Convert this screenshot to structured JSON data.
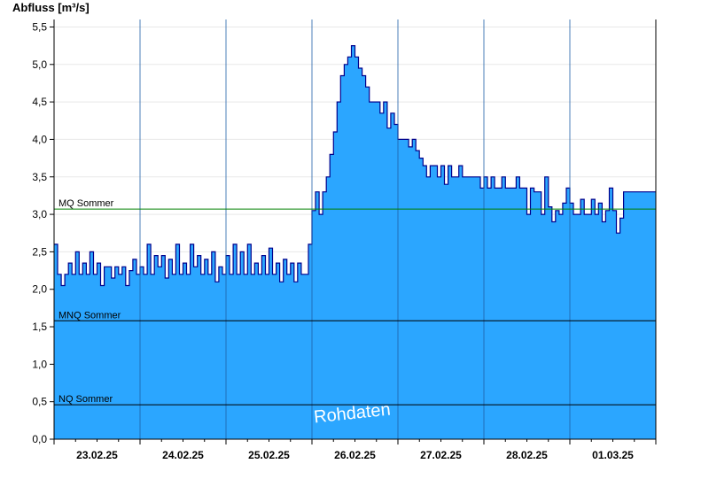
{
  "chart_data": {
    "type": "area",
    "ylabel": "Abfluss [m³/s]",
    "ylim": [
      0,
      5.6
    ],
    "yticks": [
      "0,0",
      "0,5",
      "1,0",
      "1,5",
      "2,0",
      "2,5",
      "3,0",
      "3,5",
      "4,0",
      "4,5",
      "5,0",
      "5,5"
    ],
    "yticks_values": [
      0,
      0.5,
      1.0,
      1.5,
      2.0,
      2.5,
      3.0,
      3.5,
      4.0,
      4.5,
      5.0,
      5.5
    ],
    "x_range_days": [
      "2025-02-23T00:00",
      "2025-03-02T00:00"
    ],
    "xticks": [
      "23.02.25",
      "24.02.25",
      "25.02.25",
      "26.02.25",
      "27.02.25",
      "28.02.25",
      "01.03.25"
    ],
    "grid": true,
    "fill_color": "#2ba6ff",
    "line_color": "#00008b",
    "reference_lines": [
      {
        "label": "MQ Sommer",
        "value": 3.07,
        "color": "#008000"
      },
      {
        "label": "MNQ Sommer",
        "value": 1.58,
        "color": "#000000"
      },
      {
        "label": "NQ Sommer",
        "value": 0.46,
        "color": "#000000"
      }
    ],
    "watermark": "Rohdaten",
    "series": [
      {
        "values": [
          [
            "2025-02-23T00:00",
            2.6
          ],
          [
            "2025-02-23T01:00",
            2.2
          ],
          [
            "2025-02-23T02:00",
            2.05
          ],
          [
            "2025-02-23T03:00",
            2.2
          ],
          [
            "2025-02-23T04:00",
            2.35
          ],
          [
            "2025-02-23T05:00",
            2.2
          ],
          [
            "2025-02-23T06:00",
            2.5
          ],
          [
            "2025-02-23T07:00",
            2.2
          ],
          [
            "2025-02-23T08:00",
            2.35
          ],
          [
            "2025-02-23T09:00",
            2.2
          ],
          [
            "2025-02-23T10:00",
            2.5
          ],
          [
            "2025-02-23T11:00",
            2.2
          ],
          [
            "2025-02-23T12:00",
            2.35
          ],
          [
            "2025-02-23T13:00",
            2.05
          ],
          [
            "2025-02-23T14:00",
            2.3
          ],
          [
            "2025-02-23T15:00",
            2.3
          ],
          [
            "2025-02-23T16:00",
            2.15
          ],
          [
            "2025-02-23T17:00",
            2.3
          ],
          [
            "2025-02-23T18:00",
            2.2
          ],
          [
            "2025-02-23T19:00",
            2.3
          ],
          [
            "2025-02-23T20:00",
            2.05
          ],
          [
            "2025-02-23T21:00",
            2.25
          ],
          [
            "2025-02-23T22:00",
            2.4
          ],
          [
            "2025-02-23T23:00",
            2.2
          ],
          [
            "2025-02-24T00:00",
            2.3
          ],
          [
            "2025-02-24T01:00",
            2.2
          ],
          [
            "2025-02-24T02:00",
            2.6
          ],
          [
            "2025-02-24T03:00",
            2.2
          ],
          [
            "2025-02-24T04:00",
            2.45
          ],
          [
            "2025-02-24T05:00",
            2.3
          ],
          [
            "2025-02-24T06:00",
            2.45
          ],
          [
            "2025-02-24T07:00",
            2.15
          ],
          [
            "2025-02-24T08:00",
            2.4
          ],
          [
            "2025-02-24T09:00",
            2.2
          ],
          [
            "2025-02-24T10:00",
            2.6
          ],
          [
            "2025-02-24T11:00",
            2.2
          ],
          [
            "2025-02-24T12:00",
            2.35
          ],
          [
            "2025-02-24T13:00",
            2.2
          ],
          [
            "2025-02-24T14:00",
            2.6
          ],
          [
            "2025-02-24T15:00",
            2.3
          ],
          [
            "2025-02-24T16:00",
            2.45
          ],
          [
            "2025-02-24T17:00",
            2.2
          ],
          [
            "2025-02-24T18:00",
            2.4
          ],
          [
            "2025-02-24T19:00",
            2.2
          ],
          [
            "2025-02-24T20:00",
            2.5
          ],
          [
            "2025-02-24T21:00",
            2.1
          ],
          [
            "2025-02-24T22:00",
            2.3
          ],
          [
            "2025-02-24T23:00",
            2.2
          ],
          [
            "2025-02-25T00:00",
            2.45
          ],
          [
            "2025-02-25T01:00",
            2.2
          ],
          [
            "2025-02-25T02:00",
            2.6
          ],
          [
            "2025-02-25T03:00",
            2.2
          ],
          [
            "2025-02-25T04:00",
            2.5
          ],
          [
            "2025-02-25T05:00",
            2.2
          ],
          [
            "2025-02-25T06:00",
            2.6
          ],
          [
            "2025-02-25T07:00",
            2.2
          ],
          [
            "2025-02-25T08:00",
            2.35
          ],
          [
            "2025-02-25T09:00",
            2.2
          ],
          [
            "2025-02-25T10:00",
            2.45
          ],
          [
            "2025-02-25T11:00",
            2.2
          ],
          [
            "2025-02-25T12:00",
            2.55
          ],
          [
            "2025-02-25T13:00",
            2.2
          ],
          [
            "2025-02-25T14:00",
            2.35
          ],
          [
            "2025-02-25T15:00",
            2.1
          ],
          [
            "2025-02-25T16:00",
            2.4
          ],
          [
            "2025-02-25T17:00",
            2.2
          ],
          [
            "2025-02-25T18:00",
            2.35
          ],
          [
            "2025-02-25T19:00",
            2.1
          ],
          [
            "2025-02-25T20:00",
            2.35
          ],
          [
            "2025-02-25T21:00",
            2.2
          ],
          [
            "2025-02-25T22:00",
            2.2
          ],
          [
            "2025-02-25T23:00",
            2.6
          ],
          [
            "2025-02-26T00:00",
            3.05
          ],
          [
            "2025-02-26T01:00",
            3.3
          ],
          [
            "2025-02-26T02:00",
            3.0
          ],
          [
            "2025-02-26T03:00",
            3.3
          ],
          [
            "2025-02-26T04:00",
            3.5
          ],
          [
            "2025-02-26T05:00",
            3.8
          ],
          [
            "2025-02-26T06:00",
            4.1
          ],
          [
            "2025-02-26T07:00",
            4.5
          ],
          [
            "2025-02-26T08:00",
            4.85
          ],
          [
            "2025-02-26T09:00",
            5.0
          ],
          [
            "2025-02-26T10:00",
            5.1
          ],
          [
            "2025-02-26T11:00",
            5.25
          ],
          [
            "2025-02-26T12:00",
            5.1
          ],
          [
            "2025-02-26T13:00",
            4.95
          ],
          [
            "2025-02-26T14:00",
            4.85
          ],
          [
            "2025-02-26T15:00",
            4.7
          ],
          [
            "2025-02-26T16:00",
            4.5
          ],
          [
            "2025-02-26T17:00",
            4.5
          ],
          [
            "2025-02-26T18:00",
            4.5
          ],
          [
            "2025-02-26T19:00",
            4.35
          ],
          [
            "2025-02-26T20:00",
            4.5
          ],
          [
            "2025-02-26T21:00",
            4.15
          ],
          [
            "2025-02-26T22:00",
            4.35
          ],
          [
            "2025-02-26T23:00",
            4.2
          ],
          [
            "2025-02-27T00:00",
            4.0
          ],
          [
            "2025-02-27T01:00",
            4.0
          ],
          [
            "2025-02-27T02:00",
            4.0
          ],
          [
            "2025-02-27T03:00",
            3.9
          ],
          [
            "2025-02-27T04:00",
            4.0
          ],
          [
            "2025-02-27T05:00",
            3.85
          ],
          [
            "2025-02-27T06:00",
            3.75
          ],
          [
            "2025-02-27T07:00",
            3.65
          ],
          [
            "2025-02-27T08:00",
            3.5
          ],
          [
            "2025-02-27T09:00",
            3.65
          ],
          [
            "2025-02-27T10:00",
            3.65
          ],
          [
            "2025-02-27T11:00",
            3.5
          ],
          [
            "2025-02-27T12:00",
            3.65
          ],
          [
            "2025-02-27T13:00",
            3.4
          ],
          [
            "2025-02-27T14:00",
            3.65
          ],
          [
            "2025-02-27T15:00",
            3.5
          ],
          [
            "2025-02-27T16:00",
            3.5
          ],
          [
            "2025-02-27T17:00",
            3.65
          ],
          [
            "2025-02-27T18:00",
            3.5
          ],
          [
            "2025-02-27T19:00",
            3.5
          ],
          [
            "2025-02-27T20:00",
            3.5
          ],
          [
            "2025-02-27T21:00",
            3.5
          ],
          [
            "2025-02-27T22:00",
            3.5
          ],
          [
            "2025-02-27T23:00",
            3.35
          ],
          [
            "2025-02-28T00:00",
            3.5
          ],
          [
            "2025-02-28T01:00",
            3.35
          ],
          [
            "2025-02-28T02:00",
            3.5
          ],
          [
            "2025-02-28T03:00",
            3.35
          ],
          [
            "2025-02-28T04:00",
            3.35
          ],
          [
            "2025-02-28T05:00",
            3.5
          ],
          [
            "2025-02-28T06:00",
            3.35
          ],
          [
            "2025-02-28T07:00",
            3.35
          ],
          [
            "2025-02-28T08:00",
            3.35
          ],
          [
            "2025-02-28T09:00",
            3.5
          ],
          [
            "2025-02-28T10:00",
            3.35
          ],
          [
            "2025-02-28T11:00",
            3.35
          ],
          [
            "2025-02-28T12:00",
            3.0
          ],
          [
            "2025-02-28T13:00",
            3.35
          ],
          [
            "2025-02-28T14:00",
            3.3
          ],
          [
            "2025-02-28T15:00",
            3.3
          ],
          [
            "2025-02-28T16:00",
            3.0
          ],
          [
            "2025-02-28T17:00",
            3.5
          ],
          [
            "2025-02-28T18:00",
            3.1
          ],
          [
            "2025-02-28T19:00",
            2.9
          ],
          [
            "2025-02-28T20:00",
            3.05
          ],
          [
            "2025-02-28T21:00",
            3.0
          ],
          [
            "2025-02-28T22:00",
            3.15
          ],
          [
            "2025-02-28T23:00",
            3.35
          ],
          [
            "2025-03-01T00:00",
            3.15
          ],
          [
            "2025-03-01T01:00",
            3.0
          ],
          [
            "2025-03-01T02:00",
            3.0
          ],
          [
            "2025-03-01T03:00",
            3.2
          ],
          [
            "2025-03-01T04:00",
            3.0
          ],
          [
            "2025-03-01T05:00",
            3.0
          ],
          [
            "2025-03-01T06:00",
            3.2
          ],
          [
            "2025-03-01T07:00",
            3.0
          ],
          [
            "2025-03-01T08:00",
            3.15
          ],
          [
            "2025-03-01T09:00",
            2.9
          ],
          [
            "2025-03-01T10:00",
            3.05
          ],
          [
            "2025-03-01T11:00",
            3.35
          ],
          [
            "2025-03-01T12:00",
            3.05
          ],
          [
            "2025-03-01T13:00",
            2.75
          ],
          [
            "2025-03-01T14:00",
            2.95
          ],
          [
            "2025-03-01T15:00",
            3.3
          ]
        ]
      }
    ]
  }
}
